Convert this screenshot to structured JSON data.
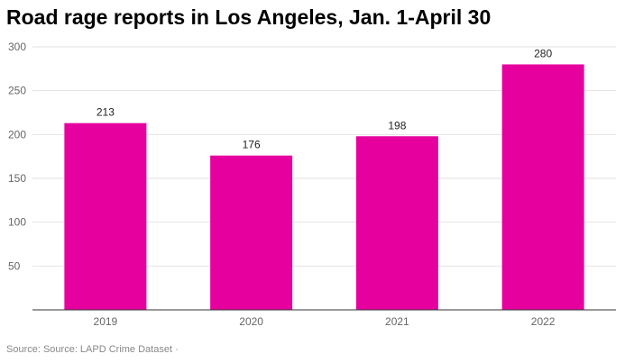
{
  "title": "Road rage reports in Los Angeles, Jan. 1-April 30",
  "source": "Source: Source: LAPD Crime Dataset ·",
  "colors": {
    "bar": "#e6009e"
  },
  "chart_data": {
    "type": "bar",
    "title": "Road rage reports in Los Angeles, Jan. 1-April 30",
    "categories": [
      "2019",
      "2020",
      "2021",
      "2022"
    ],
    "values": [
      213,
      176,
      198,
      280
    ],
    "data_labels": [
      "213",
      "176",
      "198",
      "280"
    ],
    "xlabel": "",
    "ylabel": "",
    "ylim": [
      0,
      300
    ],
    "yticks": [
      50,
      100,
      150,
      200,
      250,
      300
    ],
    "grid": true,
    "legend": "none"
  }
}
